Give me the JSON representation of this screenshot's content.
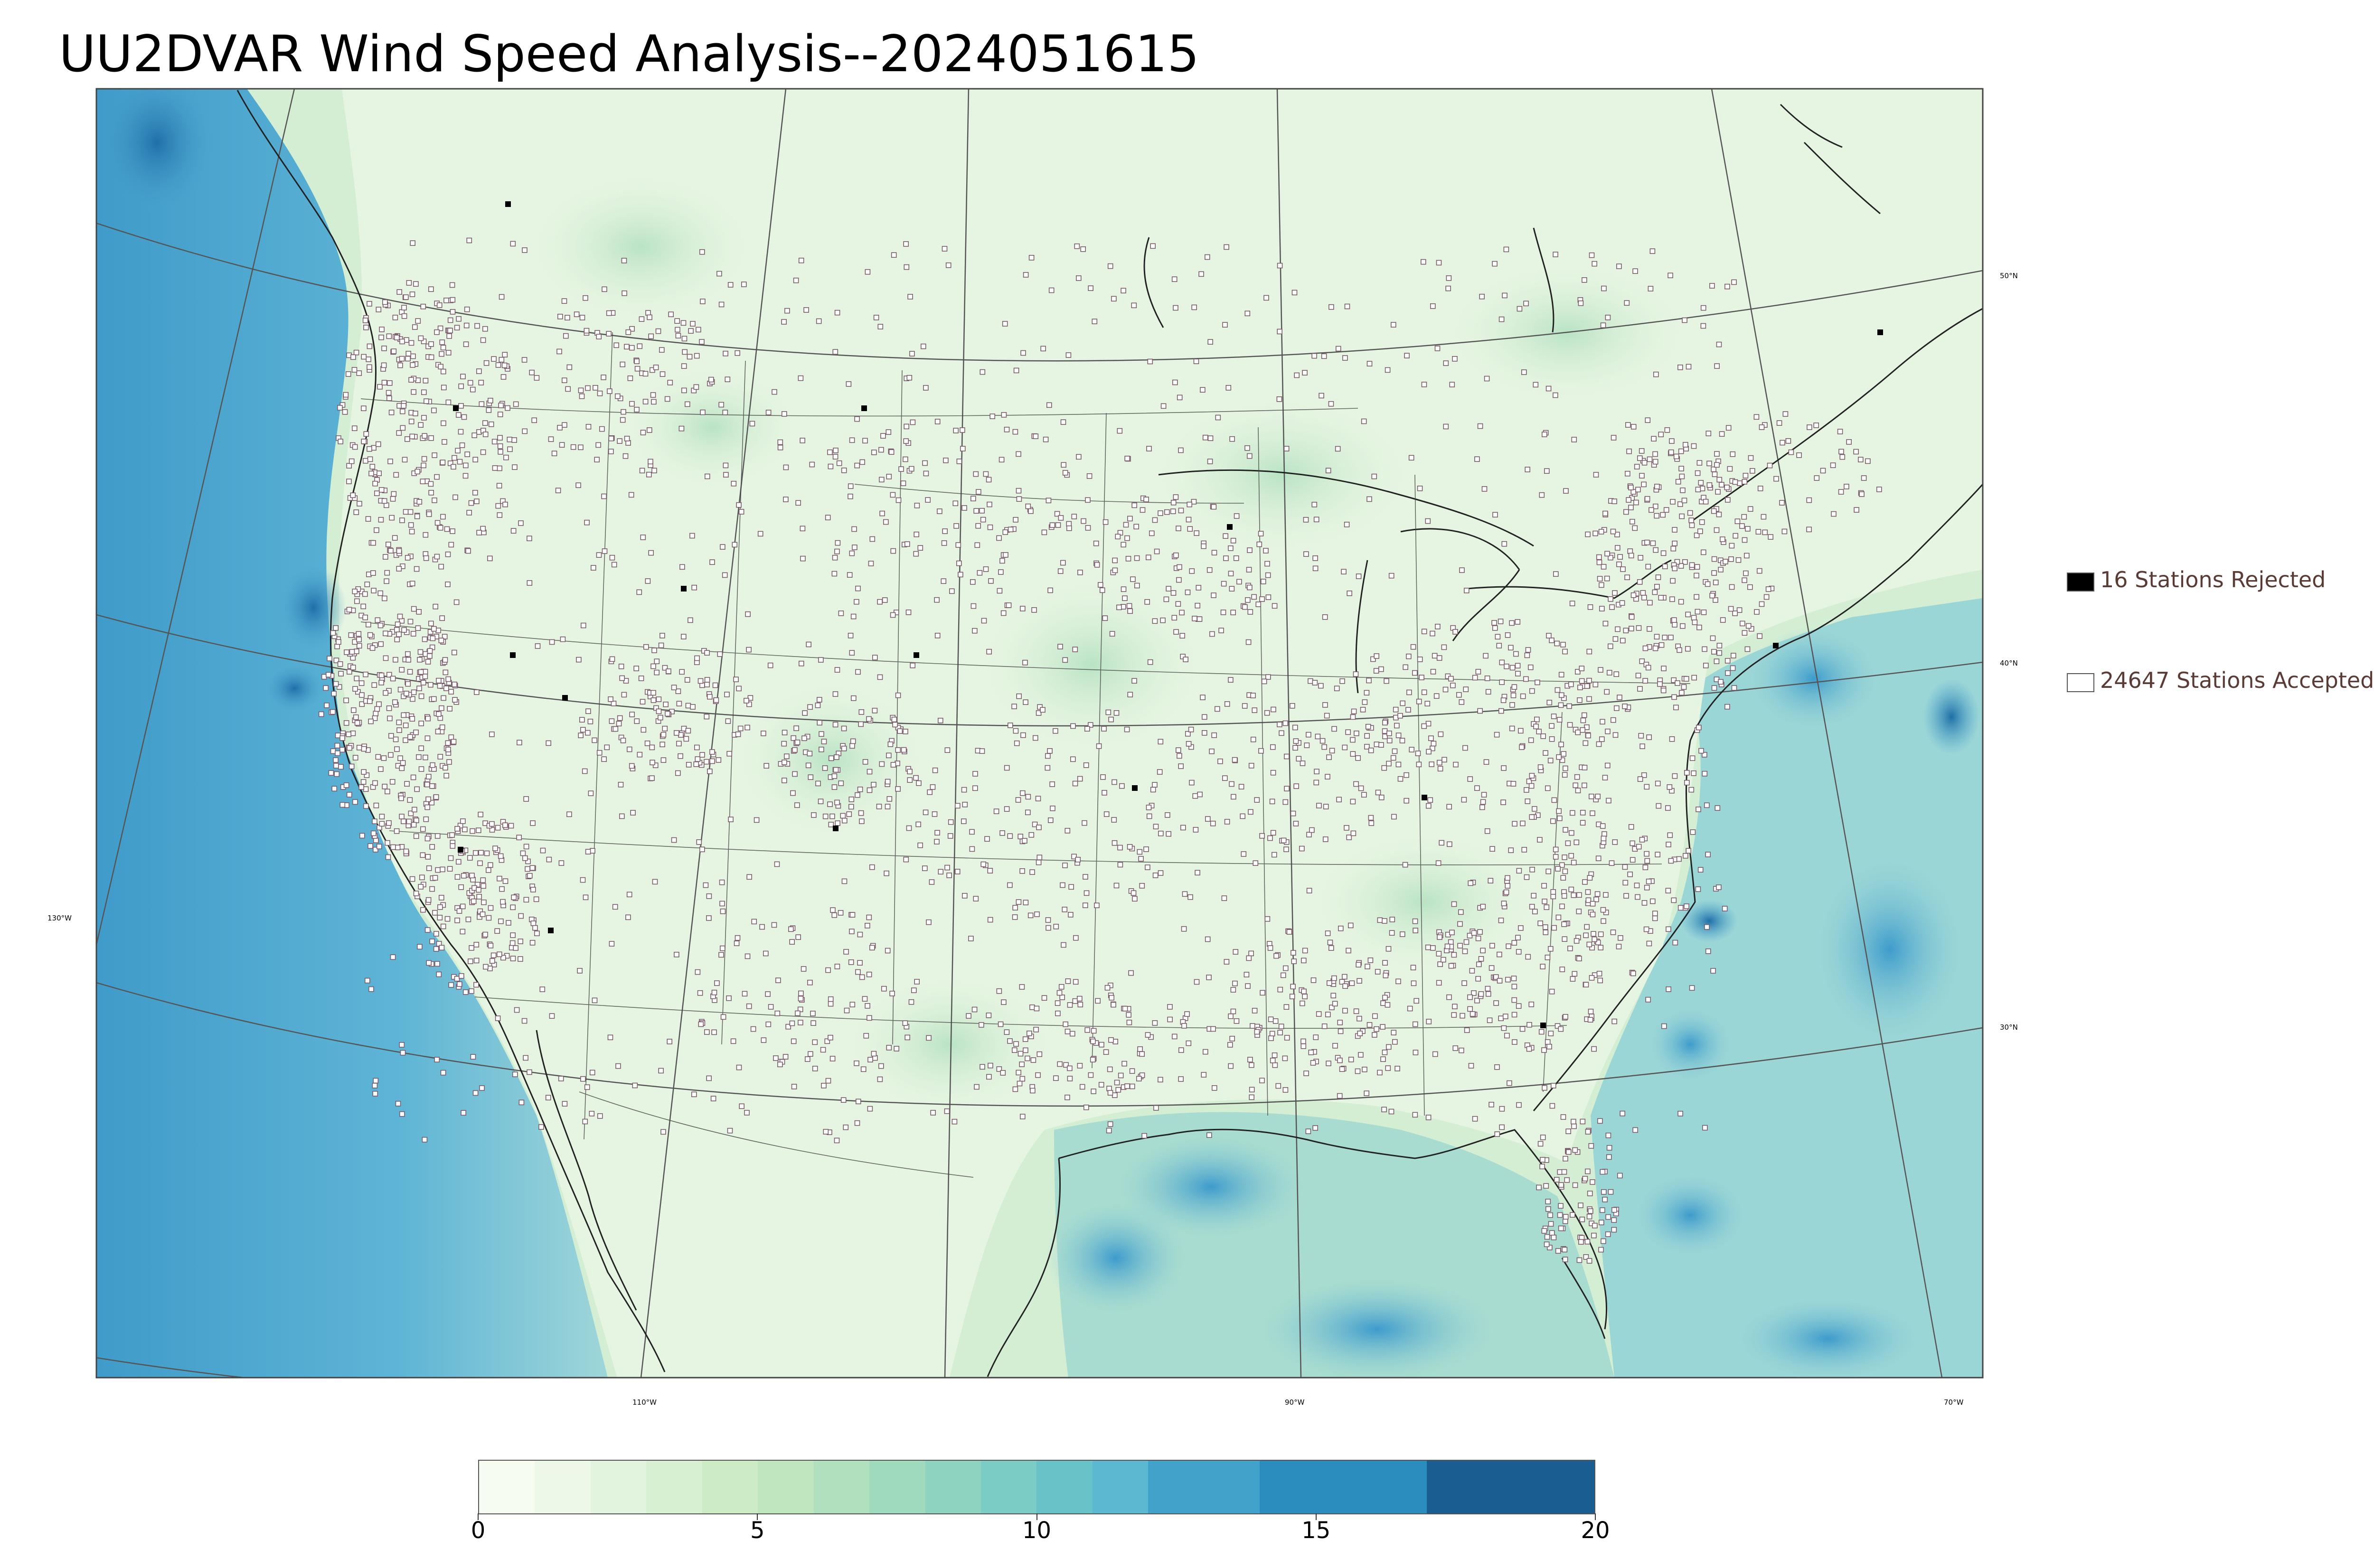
{
  "title": "UU2DVAR Wind Speed Analysis--2024051615",
  "map": {
    "projection": "lambert-conformal",
    "field": "wind speed",
    "colormap": "GnBu",
    "land_color": "#eaf6e4",
    "ocean_pacific_color": "#5fb5d6",
    "ocean_atlantic_color": "#93d0da",
    "station_marker_color": "#7a5b6a"
  },
  "graticule": {
    "longitude_labels": [
      "130°W",
      "110°W",
      "90°W",
      "70°W"
    ],
    "latitude_labels": [
      "50°N",
      "40°N",
      "30°N"
    ]
  },
  "legend": {
    "rejected": {
      "label": "16 Stations Rejected",
      "count": 16,
      "color": "#000000"
    },
    "accepted": {
      "label": "24647 Stations Accepted",
      "count": 24647,
      "color": "#ffffff"
    }
  },
  "colorbar": {
    "min": 0,
    "max": 20,
    "tick_labels": [
      "0",
      "5",
      "10",
      "15",
      "20"
    ],
    "tick_values": [
      0,
      5,
      10,
      15,
      20
    ],
    "bins": [
      {
        "from": 0,
        "to": 1,
        "color": "#f7fcf0"
      },
      {
        "from": 1,
        "to": 2,
        "color": "#eef8e8"
      },
      {
        "from": 2,
        "to": 3,
        "color": "#e3f4de"
      },
      {
        "from": 3,
        "to": 4,
        "color": "#d8f0d2"
      },
      {
        "from": 4,
        "to": 5,
        "color": "#cdebc5"
      },
      {
        "from": 5,
        "to": 6,
        "color": "#bfe6be"
      },
      {
        "from": 6,
        "to": 7,
        "color": "#b0e0bd"
      },
      {
        "from": 7,
        "to": 8,
        "color": "#a0dabc"
      },
      {
        "from": 8,
        "to": 9,
        "color": "#8dd3c0"
      },
      {
        "from": 9,
        "to": 10,
        "color": "#7bccc4"
      },
      {
        "from": 10,
        "to": 11,
        "color": "#6ac2c9"
      },
      {
        "from": 11,
        "to": 12,
        "color": "#5bb8d0"
      },
      {
        "from": 12,
        "to": 14,
        "color": "#43a2ca"
      },
      {
        "from": 14,
        "to": 17,
        "color": "#2b8cbe"
      },
      {
        "from": 17,
        "to": 20,
        "color": "#1a5e91"
      }
    ]
  }
}
